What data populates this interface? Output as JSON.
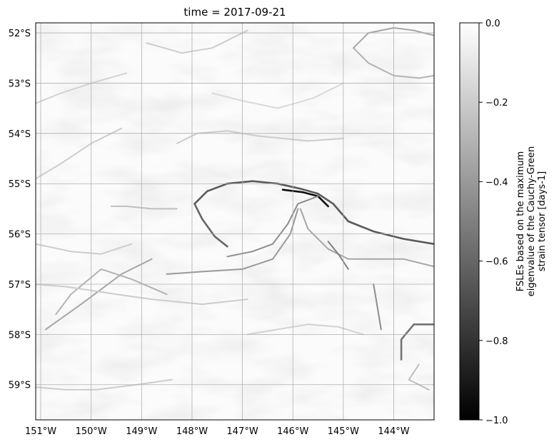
{
  "chart_data": {
    "type": "heatmap",
    "title": "time = 2017-09-21",
    "colormap": "gray",
    "colors": {
      "min": "#000000",
      "max": "#ffffff",
      "background": "#fbfbfb",
      "grid": "#b0b0b0"
    },
    "grid": true,
    "xlim": [
      -151.1,
      -143.2
    ],
    "ylim": [
      -59.7,
      -51.8
    ],
    "x_ticks": [
      {
        "value": -151,
        "label": "151°W"
      },
      {
        "value": -150,
        "label": "150°W"
      },
      {
        "value": -149,
        "label": "149°W"
      },
      {
        "value": -148,
        "label": "148°W"
      },
      {
        "value": -147,
        "label": "147°W"
      },
      {
        "value": -146,
        "label": "146°W"
      },
      {
        "value": -145,
        "label": "145°W"
      },
      {
        "value": -144,
        "label": "144°W"
      }
    ],
    "y_ticks": [
      {
        "value": -52,
        "label": "52°S"
      },
      {
        "value": -53,
        "label": "53°S"
      },
      {
        "value": -54,
        "label": "54°S"
      },
      {
        "value": -55,
        "label": "55°S"
      },
      {
        "value": -56,
        "label": "56°S"
      },
      {
        "value": -57,
        "label": "57°S"
      },
      {
        "value": -58,
        "label": "58°S"
      },
      {
        "value": -59,
        "label": "59°S"
      }
    ],
    "colorbar": {
      "range": [
        -1.0,
        0.0
      ],
      "ticks": [
        {
          "value": 0.0,
          "label": "0.0"
        },
        {
          "value": -0.2,
          "label": "−0.2"
        },
        {
          "value": -0.4,
          "label": "−0.4"
        },
        {
          "value": -0.6,
          "label": "−0.6"
        },
        {
          "value": -0.8,
          "label": "−0.8"
        },
        {
          "value": -1.0,
          "label": "−1.0"
        }
      ],
      "label_lines": [
        "FSLEs based on the maximum",
        "eigenvalue of the Cauchy-Green",
        "strain tensor [days-1]"
      ]
    },
    "ridges": [
      {
        "strength": -0.65,
        "points": [
          [
            -147.95,
            -55.4
          ],
          [
            -147.7,
            -55.15
          ],
          [
            -147.3,
            -55.0
          ],
          [
            -146.8,
            -54.95
          ],
          [
            -146.3,
            -55.0
          ],
          [
            -145.85,
            -55.1
          ],
          [
            -145.5,
            -55.2
          ],
          [
            -145.2,
            -55.4
          ],
          [
            -144.9,
            -55.75
          ],
          [
            -144.4,
            -55.95
          ],
          [
            -143.8,
            -56.1
          ],
          [
            -143.2,
            -56.2
          ]
        ]
      },
      {
        "strength": -0.95,
        "points": [
          [
            -146.2,
            -55.12
          ],
          [
            -145.8,
            -55.17
          ],
          [
            -145.5,
            -55.25
          ],
          [
            -145.3,
            -55.45
          ]
        ]
      },
      {
        "strength": -0.6,
        "points": [
          [
            -147.95,
            -55.4
          ],
          [
            -147.8,
            -55.7
          ],
          [
            -147.55,
            -56.05
          ],
          [
            -147.3,
            -56.25
          ]
        ]
      },
      {
        "strength": -0.45,
        "points": [
          [
            -147.3,
            -56.45
          ],
          [
            -146.8,
            -56.35
          ],
          [
            -146.4,
            -56.2
          ],
          [
            -146.1,
            -55.8
          ],
          [
            -145.9,
            -55.4
          ],
          [
            -145.5,
            -55.25
          ]
        ]
      },
      {
        "strength": -0.4,
        "points": [
          [
            -148.5,
            -56.8
          ],
          [
            -147.8,
            -56.75
          ],
          [
            -147.0,
            -56.7
          ],
          [
            -146.4,
            -56.5
          ],
          [
            -146.05,
            -56.0
          ],
          [
            -145.9,
            -55.5
          ]
        ]
      },
      {
        "strength": -0.35,
        "points": [
          [
            -145.85,
            -55.5
          ],
          [
            -145.7,
            -55.9
          ],
          [
            -145.3,
            -56.3
          ],
          [
            -144.9,
            -56.5
          ],
          [
            -144.4,
            -56.5
          ],
          [
            -143.8,
            -56.5
          ],
          [
            -143.2,
            -56.65
          ]
        ]
      },
      {
        "strength": -0.5,
        "points": [
          [
            -145.3,
            -56.15
          ],
          [
            -145.1,
            -56.4
          ],
          [
            -144.9,
            -56.7
          ]
        ]
      },
      {
        "strength": -0.45,
        "points": [
          [
            -144.4,
            -57.0
          ],
          [
            -144.35,
            -57.3
          ],
          [
            -144.3,
            -57.6
          ],
          [
            -144.25,
            -57.9
          ]
        ]
      },
      {
        "strength": -0.55,
        "points": [
          [
            -143.85,
            -58.5
          ],
          [
            -143.85,
            -58.1
          ],
          [
            -143.6,
            -57.8
          ],
          [
            -143.2,
            -57.8
          ]
        ]
      },
      {
        "strength": -0.35,
        "points": [
          [
            -150.9,
            -57.9
          ],
          [
            -150.2,
            -57.4
          ],
          [
            -149.4,
            -56.8
          ],
          [
            -148.8,
            -56.5
          ]
        ]
      },
      {
        "strength": -0.3,
        "points": [
          [
            -150.7,
            -57.6
          ],
          [
            -150.4,
            -57.2
          ],
          [
            -149.8,
            -56.7
          ],
          [
            -149.2,
            -56.9
          ],
          [
            -148.5,
            -57.2
          ]
        ]
      },
      {
        "strength": -0.3,
        "points": [
          [
            -144.8,
            -52.3
          ],
          [
            -144.5,
            -52.6
          ],
          [
            -144.0,
            -52.85
          ],
          [
            -143.5,
            -52.9
          ],
          [
            -143.2,
            -52.85
          ]
        ]
      },
      {
        "strength": -0.35,
        "points": [
          [
            -144.8,
            -52.3
          ],
          [
            -144.5,
            -52.0
          ],
          [
            -144.0,
            -51.9
          ],
          [
            -143.6,
            -51.95
          ],
          [
            -143.2,
            -52.05
          ]
        ]
      },
      {
        "strength": -0.2,
        "points": [
          [
            -148.9,
            -52.2
          ],
          [
            -148.2,
            -52.4
          ],
          [
            -147.6,
            -52.3
          ],
          [
            -146.9,
            -51.95
          ]
        ]
      },
      {
        "strength": -0.2,
        "points": [
          [
            -148.3,
            -54.2
          ],
          [
            -147.9,
            -54.0
          ],
          [
            -147.3,
            -53.95
          ],
          [
            -146.7,
            -54.05
          ],
          [
            -146.2,
            -54.1
          ],
          [
            -145.7,
            -54.15
          ],
          [
            -145.0,
            -54.1
          ]
        ]
      },
      {
        "strength": -0.18,
        "points": [
          [
            -151.1,
            -53.4
          ],
          [
            -150.6,
            -53.2
          ],
          [
            -150.0,
            -53.0
          ],
          [
            -149.3,
            -52.8
          ]
        ]
      },
      {
        "strength": -0.2,
        "points": [
          [
            -151.1,
            -54.9
          ],
          [
            -150.6,
            -54.6
          ],
          [
            -150.0,
            -54.2
          ],
          [
            -149.4,
            -53.9
          ]
        ]
      },
      {
        "strength": -0.25,
        "points": [
          [
            -149.6,
            -55.45
          ],
          [
            -149.3,
            -55.45
          ],
          [
            -148.8,
            -55.5
          ],
          [
            -148.3,
            -55.5
          ]
        ]
      },
      {
        "strength": -0.2,
        "points": [
          [
            -151.1,
            -56.2
          ],
          [
            -150.4,
            -56.35
          ],
          [
            -149.8,
            -56.4
          ],
          [
            -149.2,
            -56.2
          ]
        ]
      },
      {
        "strength": -0.2,
        "points": [
          [
            -151.1,
            -59.05
          ],
          [
            -150.5,
            -59.1
          ],
          [
            -149.9,
            -59.1
          ],
          [
            -149.1,
            -59.0
          ],
          [
            -148.4,
            -58.9
          ]
        ]
      },
      {
        "strength": -0.2,
        "points": [
          [
            -151.1,
            -57.0
          ],
          [
            -150.5,
            -57.05
          ],
          [
            -149.5,
            -57.2
          ],
          [
            -148.8,
            -57.3
          ],
          [
            -147.8,
            -57.4
          ],
          [
            -146.9,
            -57.3
          ]
        ]
      },
      {
        "strength": -0.25,
        "points": [
          [
            -143.5,
            -58.6
          ],
          [
            -143.7,
            -58.9
          ],
          [
            -143.3,
            -59.1
          ]
        ]
      },
      {
        "strength": -0.18,
        "points": [
          [
            -146.9,
            -58.0
          ],
          [
            -146.3,
            -57.9
          ],
          [
            -145.7,
            -57.8
          ],
          [
            -145.1,
            -57.85
          ],
          [
            -144.6,
            -58.0
          ]
        ]
      },
      {
        "strength": -0.15,
        "points": [
          [
            -147.6,
            -53.2
          ],
          [
            -147.0,
            -53.35
          ],
          [
            -146.3,
            -53.5
          ],
          [
            -145.6,
            -53.3
          ],
          [
            -145.0,
            -53.0
          ]
        ]
      }
    ]
  }
}
